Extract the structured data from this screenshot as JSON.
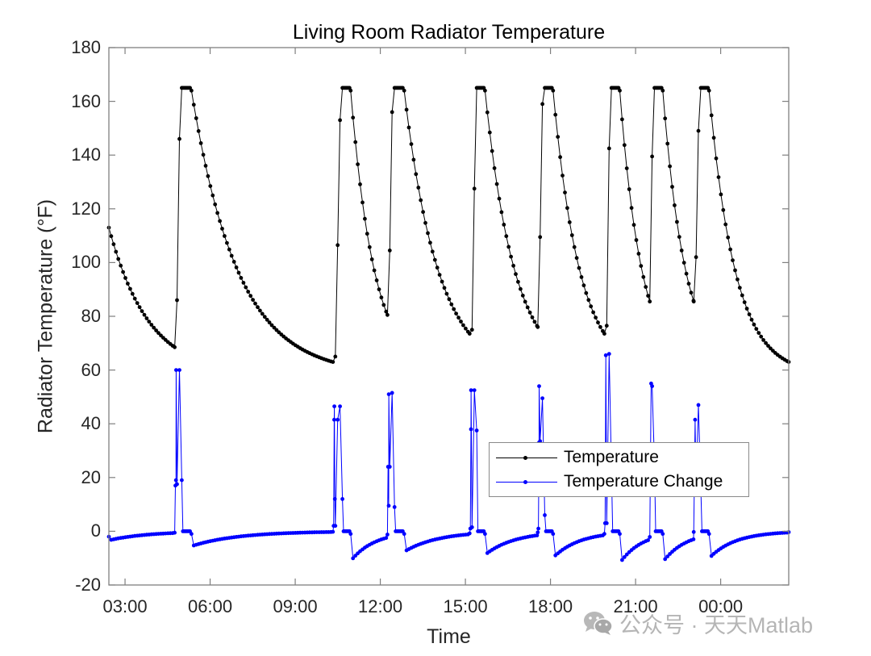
{
  "figure": {
    "title": "Living Room Radiator Temperature",
    "xlabel": "Time",
    "ylabel": "Radiator Temperature (°F)",
    "yticks": [
      "180",
      "160",
      "140",
      "120",
      "100",
      "80",
      "60",
      "40",
      "20",
      "0",
      "-20"
    ],
    "xticks": [
      "03:00",
      "06:00",
      "09:00",
      "12:00",
      "15:00",
      "18:00",
      "21:00",
      "00:00"
    ],
    "legend": {
      "items": [
        {
          "label": "Temperature",
          "color": "#000000"
        },
        {
          "label": "Temperature Change",
          "color": "#0000ff"
        }
      ]
    },
    "watermark": "公众号 · 天天Matlab",
    "colors": {
      "temperature": "#000000",
      "change": "#0000ff",
      "axes": "#7f7f7f"
    }
  },
  "chart_data": {
    "type": "line",
    "title": "Living Room Radiator Temperature",
    "xlabel": "Time",
    "ylabel": "Radiator Temperature (°F)",
    "ylim": [
      -20,
      180
    ],
    "xlim": [
      "02:26",
      "02:24 (+1 day)"
    ],
    "x_ticks": [
      "03:00",
      "06:00",
      "09:00",
      "12:00",
      "15:00",
      "18:00",
      "21:00",
      "00:00"
    ],
    "y_ticks": [
      -20,
      0,
      20,
      40,
      60,
      80,
      100,
      120,
      140,
      160,
      180
    ],
    "grid": false,
    "legend_position": "inside, lower-right center",
    "markers": "dots",
    "start": {
      "time_h": 2.43,
      "temperature": 113
    },
    "end": {
      "time_h": 26.4,
      "temperature": 63
    },
    "heating_cycles": [
      {
        "on_time": "04:45",
        "on_h": 4.75,
        "temp_before": 68.5,
        "intermediate_points": [
          86,
          146
        ],
        "peak": 165,
        "plateau_h": 0.3,
        "spike_change": 60,
        "spike_points": [
          17,
          19
        ]
      },
      {
        "on_time": "10:20",
        "on_h": 10.33,
        "temp_before": 63,
        "intermediate_points": [
          65,
          106.5,
          153
        ],
        "peak": 165,
        "plateau_h": 0.25,
        "spike_change": 46.5,
        "spike_points": [
          2,
          41.5,
          12
        ]
      },
      {
        "on_time": "12:15",
        "on_h": 12.25,
        "temp_before": 80.5,
        "intermediate_points": [
          104.5,
          156
        ],
        "peak": 165,
        "plateau_h": 0.3,
        "spike_change": 51,
        "spike_points": [
          24,
          9.5
        ]
      },
      {
        "on_time": "15:10",
        "on_h": 15.15,
        "temp_before": 73.5,
        "intermediate_points": [
          75,
          127.5
        ],
        "peak": 165,
        "plateau_h": 0.25,
        "spike_change": 52.5,
        "spike_points": [
          1,
          38
        ]
      },
      {
        "on_time": "17:35",
        "on_h": 17.55,
        "temp_before": 76,
        "intermediate_points": [
          109.5,
          159
        ],
        "peak": 165,
        "plateau_h": 0.25,
        "spike_change": 54,
        "spike_points": [
          1,
          33
        ]
      },
      {
        "on_time": "19:55",
        "on_h": 19.9,
        "temp_before": 73.5,
        "intermediate_points": [
          76.5,
          142.5
        ],
        "peak": 165,
        "plateau_h": 0.25,
        "spike_change": 65.5,
        "spike_points": [
          3
        ]
      },
      {
        "on_time": "21:30",
        "on_h": 21.5,
        "temp_before": 85.5,
        "intermediate_points": [
          139.5
        ],
        "peak": 165,
        "plateau_h": 0.25,
        "spike_change": 55,
        "spike_points": []
      },
      {
        "on_time": "23:05",
        "on_h": 23.05,
        "temp_before": 85.5,
        "intermediate_points": [
          102,
          149
        ],
        "peak": 165,
        "plateau_h": 0.25,
        "spike_change": 41.5,
        "spike_points": []
      }
    ],
    "series": [
      {
        "name": "Temperature",
        "description": "Sawtooth: rapid rise to 165°F plateau, then exponential decay toward ~60°F until next heating cycle",
        "min": 63,
        "max": 165
      },
      {
        "name": "Temperature Change",
        "description": "Near 0 baseline; positive spikes at each heating start, dips of about -4 to -6 right after each peak plateau",
        "min": -6.5,
        "max": 65.5
      }
    ]
  }
}
